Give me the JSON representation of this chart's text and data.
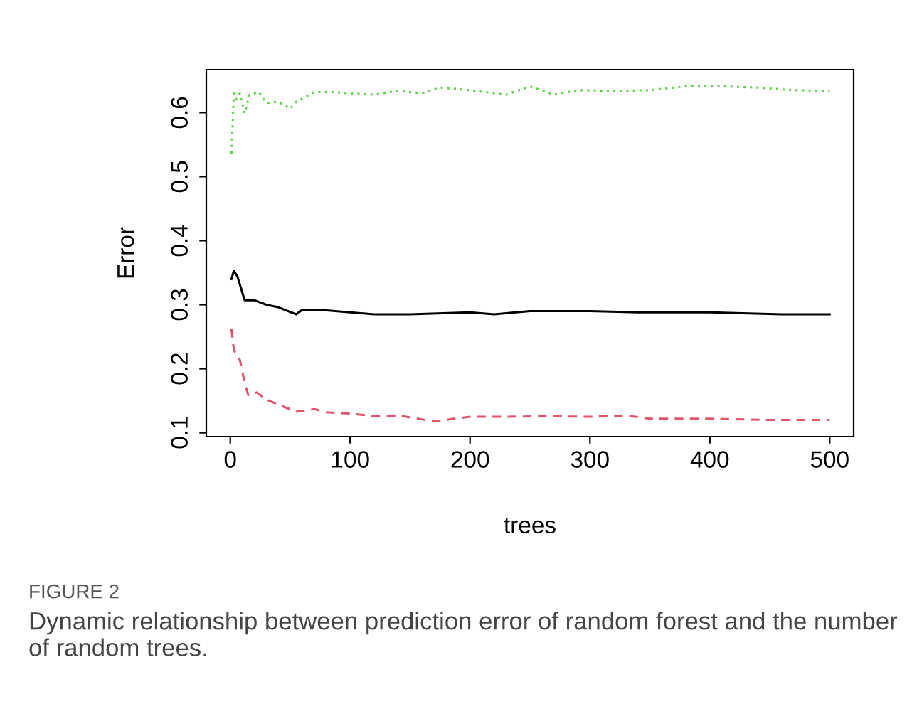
{
  "chart_data": {
    "type": "line",
    "xlabel": "trees",
    "ylabel": "Error",
    "xlim": [
      -20,
      520
    ],
    "ylim": [
      0.094,
      0.667
    ],
    "xticks": [
      0,
      100,
      200,
      300,
      400,
      500
    ],
    "yticks": [
      0.1,
      0.2,
      0.3,
      0.4,
      0.5,
      0.6
    ],
    "grid": false,
    "legend": false,
    "marker": "none",
    "series": [
      {
        "color": "#000000",
        "line_style": "solid",
        "x": [
          1,
          3,
          6,
          12,
          20,
          30,
          40,
          55,
          60,
          75,
          100,
          120,
          150,
          200,
          220,
          250,
          300,
          340,
          400,
          460,
          500
        ],
        "values": [
          0.34,
          0.353,
          0.344,
          0.307,
          0.307,
          0.3,
          0.296,
          0.285,
          0.292,
          0.292,
          0.288,
          0.285,
          0.285,
          0.288,
          0.285,
          0.29,
          0.29,
          0.288,
          0.288,
          0.285,
          0.285
        ]
      },
      {
        "color": "#df536b",
        "line_style": "dashed",
        "x": [
          1,
          3,
          8,
          12,
          15,
          22,
          30,
          40,
          55,
          70,
          80,
          100,
          120,
          140,
          170,
          200,
          230,
          260,
          300,
          330,
          350,
          400,
          450,
          500
        ],
        "values": [
          0.262,
          0.229,
          0.214,
          0.178,
          0.159,
          0.163,
          0.152,
          0.144,
          0.133,
          0.137,
          0.132,
          0.13,
          0.126,
          0.127,
          0.118,
          0.125,
          0.125,
          0.126,
          0.125,
          0.127,
          0.122,
          0.122,
          0.12,
          0.12
        ]
      },
      {
        "color": "#61d04f",
        "line_style": "dotted",
        "x": [
          1,
          3,
          5,
          8,
          12,
          16,
          24,
          30,
          40,
          50,
          55,
          70,
          85,
          100,
          120,
          140,
          160,
          175,
          200,
          230,
          250,
          270,
          290,
          320,
          350,
          380,
          410,
          440,
          470,
          500
        ],
        "values": [
          0.536,
          0.63,
          0.621,
          0.63,
          0.599,
          0.628,
          0.632,
          0.615,
          0.617,
          0.606,
          0.617,
          0.632,
          0.632,
          0.63,
          0.628,
          0.634,
          0.63,
          0.639,
          0.635,
          0.628,
          0.641,
          0.628,
          0.635,
          0.634,
          0.635,
          0.641,
          0.641,
          0.639,
          0.635,
          0.634
        ]
      }
    ],
    "annotations": [
      "FIGURE 2",
      "Dynamic relationship between prediction error of random forest and the number of random trees."
    ]
  }
}
